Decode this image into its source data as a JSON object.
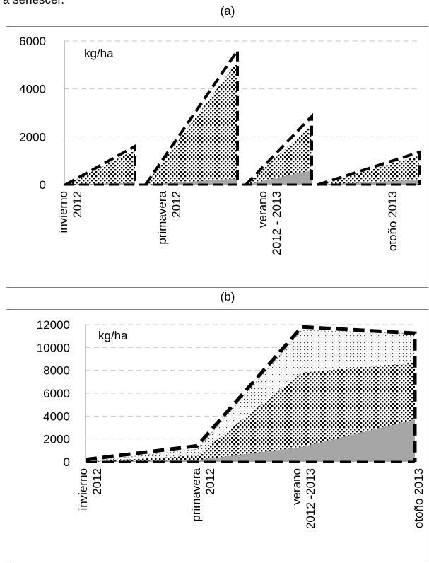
{
  "page_text": "a senescer.",
  "chart_data": [
    {
      "type": "area",
      "panel_label": "(a)",
      "unit_label": "kg/ha",
      "ylim": [
        0,
        6000
      ],
      "yticks": [
        "0",
        "2000",
        "4000",
        "6000"
      ],
      "grid": true,
      "categories": [
        [
          "invierno",
          "2012"
        ],
        [
          "primavera",
          "2012"
        ],
        [
          "verano",
          "2012 - 2013"
        ],
        [
          "otoño 2013"
        ]
      ],
      "segments": [
        {
          "category": "invierno 2012",
          "total": [
            0,
            1600
          ],
          "inner": [
            0,
            1450
          ],
          "base": [
            0,
            80
          ]
        },
        {
          "category": "primavera 2012",
          "total": [
            0,
            5600
          ],
          "inner": [
            0,
            5150
          ],
          "base": [
            0,
            250
          ]
        },
        {
          "category": "verano 2012 - 2013",
          "total": [
            0,
            2850
          ],
          "inner": [
            0,
            2500
          ],
          "base": [
            0,
            600
          ]
        },
        {
          "category": "otoño 2013",
          "total": [
            0,
            1350
          ],
          "inner": [
            0,
            1200
          ],
          "base": [
            0,
            200
          ]
        }
      ],
      "colors": {
        "dense": "#000000",
        "sparse": "#9a9a9a",
        "base": "#a6a6a6",
        "grid": "#c8c8c8"
      }
    },
    {
      "type": "area",
      "panel_label": "(b)",
      "unit_label": "kg/ha",
      "ylim": [
        0,
        12000
      ],
      "yticks": [
        "0",
        "2000",
        "4000",
        "6000",
        "8000",
        "10000",
        "12000"
      ],
      "grid": true,
      "categories": [
        [
          "invierno",
          "2012"
        ],
        [
          "primavera",
          "2012"
        ],
        [
          "verano",
          "2012 -2013"
        ],
        [
          "otoño 2013"
        ]
      ],
      "series": [
        {
          "name": "",
          "values": [
            0,
            150,
            1300,
            3700
          ]
        },
        {
          "name": "",
          "values": [
            0,
            550,
            7800,
            8700
          ]
        },
        {
          "name": "",
          "values": [
            0,
            1100,
            11500,
            11200
          ]
        },
        {
          "name": "",
          "values": [
            200,
            1400,
            11800,
            11250
          ]
        }
      ],
      "colors": {
        "dense": "#000000",
        "sparse": "#9a9a9a",
        "base": "#a6a6a6",
        "grid": "#c8c8c8"
      }
    }
  ]
}
